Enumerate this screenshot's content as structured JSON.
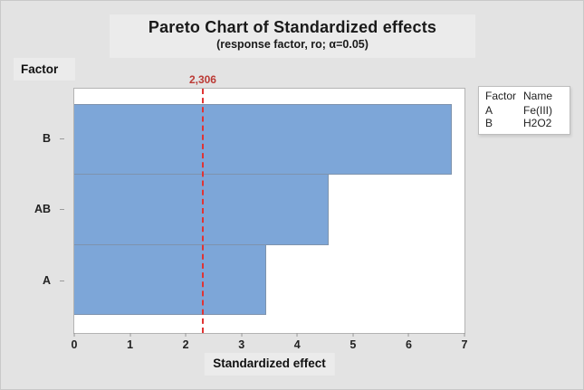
{
  "chart_data": {
    "type": "bar",
    "orientation": "horizontal",
    "title": "Pareto Chart of Standardized effects",
    "subtitle": "(response factor, ro; α=0.05)",
    "xlabel": "Standardized effect",
    "ylabel": "Factor",
    "categories": [
      "B",
      "AB",
      "A"
    ],
    "values": [
      6.78,
      4.57,
      3.45
    ],
    "xlim": [
      0,
      7
    ],
    "xticks": [
      0,
      1,
      2,
      3,
      4,
      5,
      6,
      7
    ],
    "grid": false,
    "reference_line": {
      "value": 2.306,
      "label": "2,306",
      "style": "dashed",
      "color": "#e03434"
    },
    "colors": {
      "bar_fill": "#7da6d8",
      "bar_border": "#7e93ad",
      "reference_red": "#e03434",
      "background": "#e3e3e3",
      "plot_background": "#ffffff"
    },
    "legend": {
      "position": "right",
      "headers": [
        "Factor",
        "Name"
      ],
      "rows": [
        {
          "factor": "A",
          "name": "Fe(III)"
        },
        {
          "factor": "B",
          "name": "H2O2"
        }
      ]
    }
  }
}
